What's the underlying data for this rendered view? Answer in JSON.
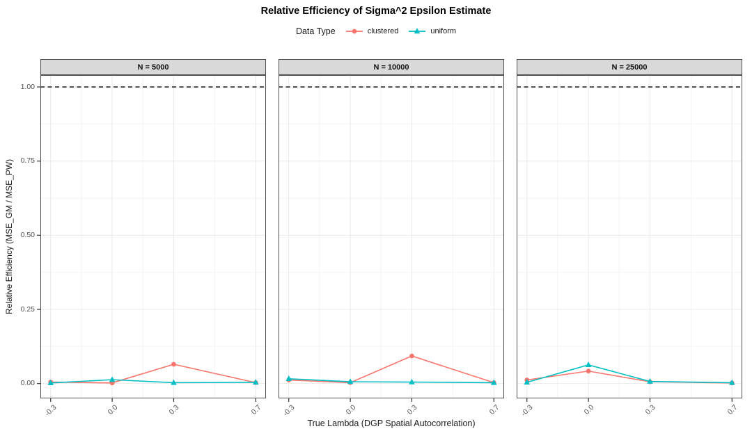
{
  "title": "Relative Efficiency of Sigma^2 Epsilon Estimate",
  "legend": {
    "label": "Data Type",
    "items": [
      {
        "name": "clustered",
        "color": "#F8766D",
        "marker": "circle"
      },
      {
        "name": "uniform",
        "color": "#00BFC4",
        "marker": "triangle"
      }
    ]
  },
  "colors": {
    "clustered": "#F8766D",
    "uniform": "#00BFC4",
    "strip_bg": "#D9D9D9",
    "panel_border": "#4D4D4D",
    "grid_major": "#E9E9E9",
    "grid_minor": "#F4F4F4",
    "tick_mark": "#333333",
    "tick_text": "#4D4D4D",
    "reference_line": "#000000"
  },
  "chart_data": {
    "type": "line",
    "title": "Relative Efficiency of Sigma^2 Epsilon Estimate",
    "xlabel": "True Lambda (DGP Spatial Autocorrelation)",
    "ylabel": "Relative Efficiency (MSE_GM / MSE_PW)",
    "legend_title": "Data Type",
    "legend_position": "top",
    "grid": true,
    "x": [
      -0.3,
      0.0,
      0.3,
      0.7
    ],
    "x_tick_labels": [
      "-0.3",
      "0.0",
      "0.3",
      "0.7"
    ],
    "x_minor": [
      -0.15,
      0.15,
      0.5
    ],
    "y_ticks": [
      0.0,
      0.25,
      0.5,
      0.75,
      1.0
    ],
    "y_tick_labels": [
      "0.00",
      "0.25",
      "0.50",
      "0.75",
      "1.00"
    ],
    "y_minor": [
      0.125,
      0.375,
      0.625,
      0.875
    ],
    "xlim": [
      -0.35,
      0.75
    ],
    "ylim": [
      -0.05,
      1.04
    ],
    "reference_line": {
      "y": 1.0,
      "style": "dashed",
      "color": "#000000"
    },
    "facets": [
      {
        "label": "N = 5000",
        "series": [
          {
            "name": "clustered",
            "color": "#F8766D",
            "marker": "circle",
            "values": [
              0.005,
              0.002,
              0.065,
              0.003
            ]
          },
          {
            "name": "uniform",
            "color": "#00BFC4",
            "marker": "triangle",
            "values": [
              0.002,
              0.013,
              0.003,
              0.004
            ]
          }
        ]
      },
      {
        "label": "N = 10000",
        "series": [
          {
            "name": "clustered",
            "color": "#F8766D",
            "marker": "circle",
            "values": [
              0.012,
              0.003,
              0.093,
              0.003
            ]
          },
          {
            "name": "uniform",
            "color": "#00BFC4",
            "marker": "triangle",
            "values": [
              0.016,
              0.006,
              0.005,
              0.003
            ]
          }
        ]
      },
      {
        "label": "N = 25000",
        "series": [
          {
            "name": "clustered",
            "color": "#F8766D",
            "marker": "circle",
            "values": [
              0.012,
              0.042,
              0.006,
              0.002
            ]
          },
          {
            "name": "uniform",
            "color": "#00BFC4",
            "marker": "triangle",
            "values": [
              0.004,
              0.063,
              0.007,
              0.003
            ]
          }
        ]
      }
    ]
  }
}
